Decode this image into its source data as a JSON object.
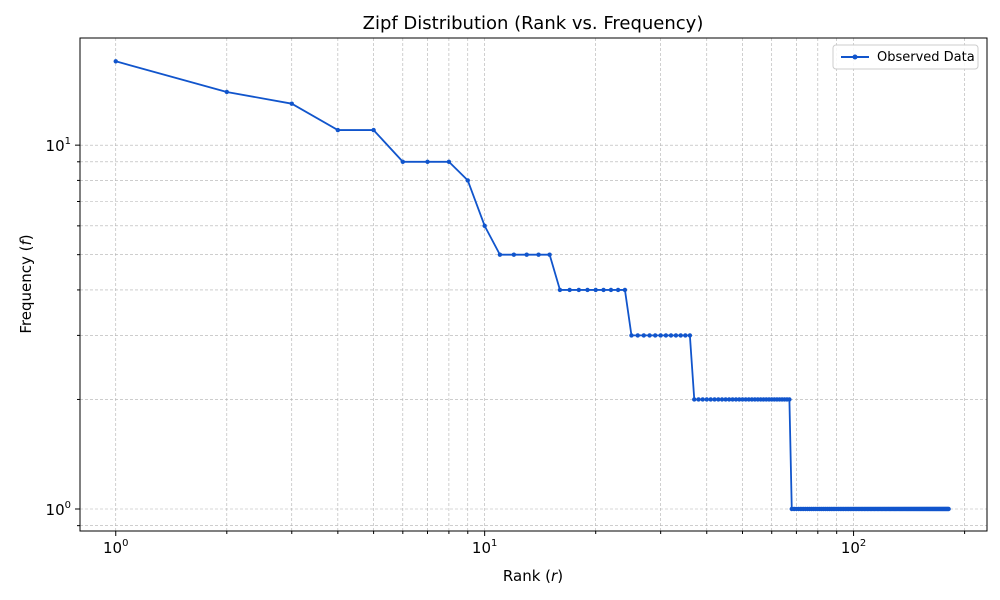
{
  "chart_data": {
    "type": "line",
    "title": "Zipf Distribution (Rank vs. Frequency)",
    "xlabel": "Rank",
    "xlabel_var": "r",
    "ylabel": "Frequency",
    "ylabel_var": "f",
    "x_scale": "log",
    "y_scale": "log",
    "xlim": [
      0.8,
      230
    ],
    "ylim": [
      0.87,
      19.7
    ],
    "grid": true,
    "legend_position": "top-right",
    "x_tick_labels": [
      {
        "value": 1,
        "base": "10",
        "exp": "0"
      },
      {
        "value": 10,
        "base": "10",
        "exp": "1"
      },
      {
        "value": 100,
        "base": "10",
        "exp": "2"
      }
    ],
    "y_tick_labels": [
      {
        "value": 1,
        "base": "10",
        "exp": "0"
      },
      {
        "value": 10,
        "base": "10",
        "exp": "1"
      }
    ],
    "colors": {
      "series": "#1155cc",
      "grid": "#b0b0b0",
      "axes": "#000000"
    },
    "series": [
      {
        "name": "Observed Data",
        "groups": [
          {
            "from_rank": 1,
            "to_rank": 1,
            "frequency": 17
          },
          {
            "from_rank": 2,
            "to_rank": 2,
            "frequency": 14
          },
          {
            "from_rank": 3,
            "to_rank": 3,
            "frequency": 13
          },
          {
            "from_rank": 4,
            "to_rank": 5,
            "frequency": 11
          },
          {
            "from_rank": 6,
            "to_rank": 8,
            "frequency": 9
          },
          {
            "from_rank": 9,
            "to_rank": 9,
            "frequency": 8
          },
          {
            "from_rank": 10,
            "to_rank": 10,
            "frequency": 6
          },
          {
            "from_rank": 11,
            "to_rank": 15,
            "frequency": 5
          },
          {
            "from_rank": 16,
            "to_rank": 24,
            "frequency": 4
          },
          {
            "from_rank": 25,
            "to_rank": 36,
            "frequency": 3
          },
          {
            "from_rank": 37,
            "to_rank": 67,
            "frequency": 2
          },
          {
            "from_rank": 68,
            "to_rank": 181,
            "frequency": 1
          }
        ]
      }
    ]
  }
}
